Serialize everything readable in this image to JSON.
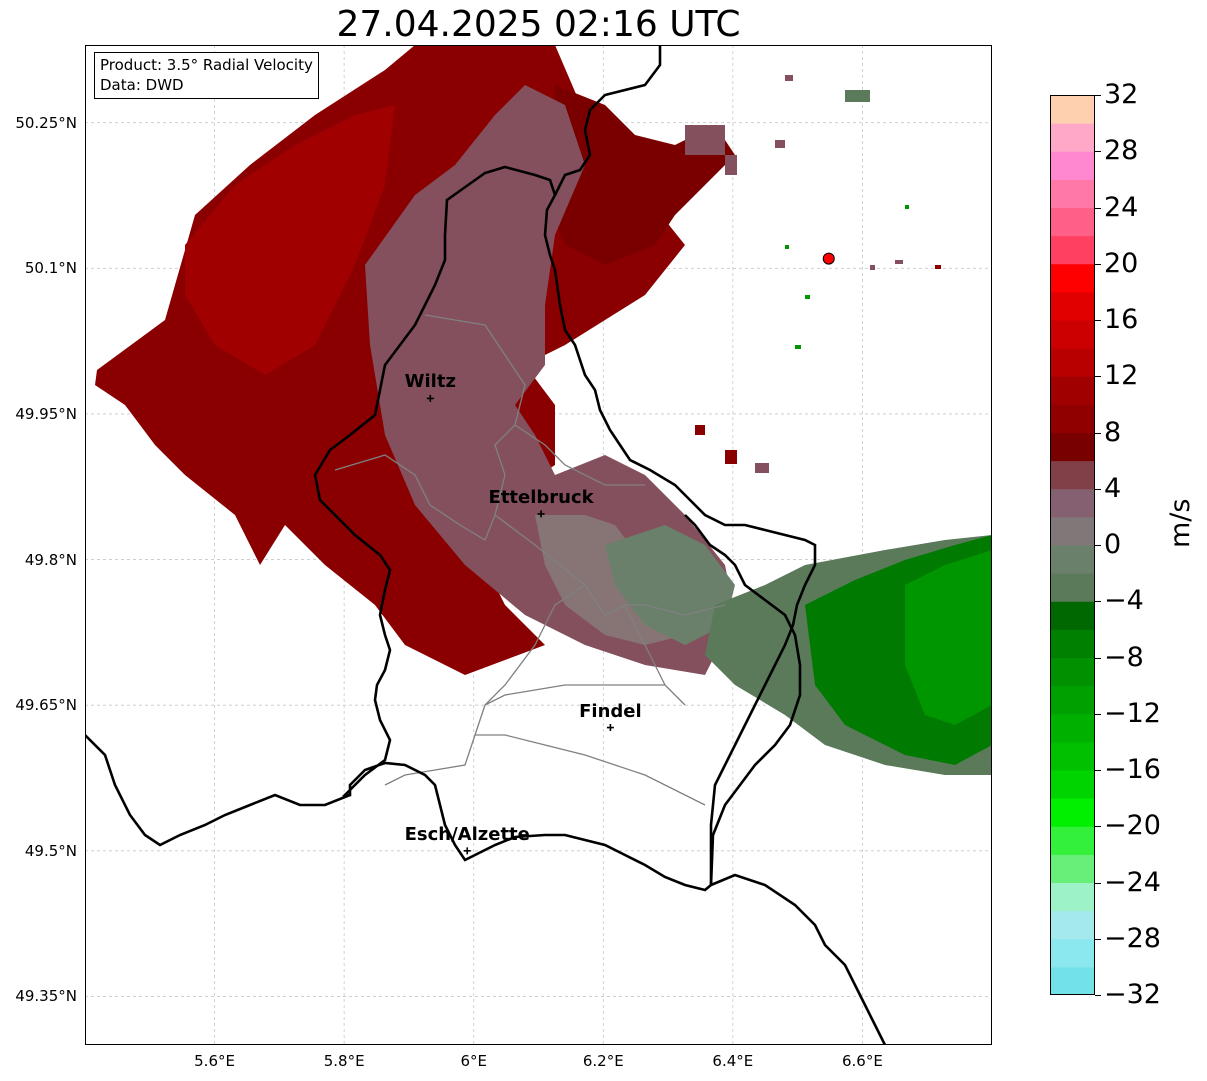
{
  "title": "27.04.2025 02:16 UTC",
  "info": {
    "product": "Product: 3.5° Radial Velocity",
    "data": "Data: DWD"
  },
  "lat_labels": [
    "50.25°N",
    "50.1°N",
    "49.95°N",
    "49.8°N",
    "49.65°N",
    "49.5°N",
    "49.35°N"
  ],
  "lon_labels": [
    "5.6°E",
    "5.8°E",
    "6°E",
    "6.2°E",
    "6.4°E",
    "6.6°E"
  ],
  "cities": [
    {
      "name": "Wiltz",
      "lat": 49.966,
      "lon": 5.933
    },
    {
      "name": "Ettelbruck",
      "lat": 49.847,
      "lon": 6.104
    },
    {
      "name": "Findel",
      "lat": 49.627,
      "lon": 6.211
    },
    {
      "name": "Esch/Alzette",
      "lat": 49.5,
      "lon": 5.99
    }
  ],
  "radar_site": {
    "lat": 50.11,
    "lon": 6.548,
    "color": "#ff0000"
  },
  "colorbar": {
    "unit": "m/s",
    "ticks": [
      "32",
      "28",
      "24",
      "20",
      "16",
      "12",
      "8",
      "4",
      "0",
      "−4",
      "−8",
      "−12",
      "−16",
      "−20",
      "−24",
      "−28",
      "−32"
    ],
    "min": -32,
    "max": 32,
    "colors": [
      "#73e2e8",
      "#8ae8ee",
      "#a4e9ec",
      "#9ef2c8",
      "#66f07a",
      "#33f03a",
      "#00f000",
      "#00d400",
      "#00c000",
      "#00b000",
      "#00a000",
      "#009000",
      "#008000",
      "#006800",
      "#5a7a5a",
      "#6a806a",
      "#807878",
      "#846070",
      "#804048",
      "#780000",
      "#900000",
      "#a00000",
      "#b80000",
      "#cc0000",
      "#e00000",
      "#ff0000",
      "#ff4060",
      "#ff6088",
      "#ff78a8",
      "#ff88d0",
      "#ffa8c8",
      "#ffd0b0"
    ]
  },
  "colors": {
    "border": "#000000",
    "admin": "#808080",
    "grid": "#c8c8c8"
  }
}
